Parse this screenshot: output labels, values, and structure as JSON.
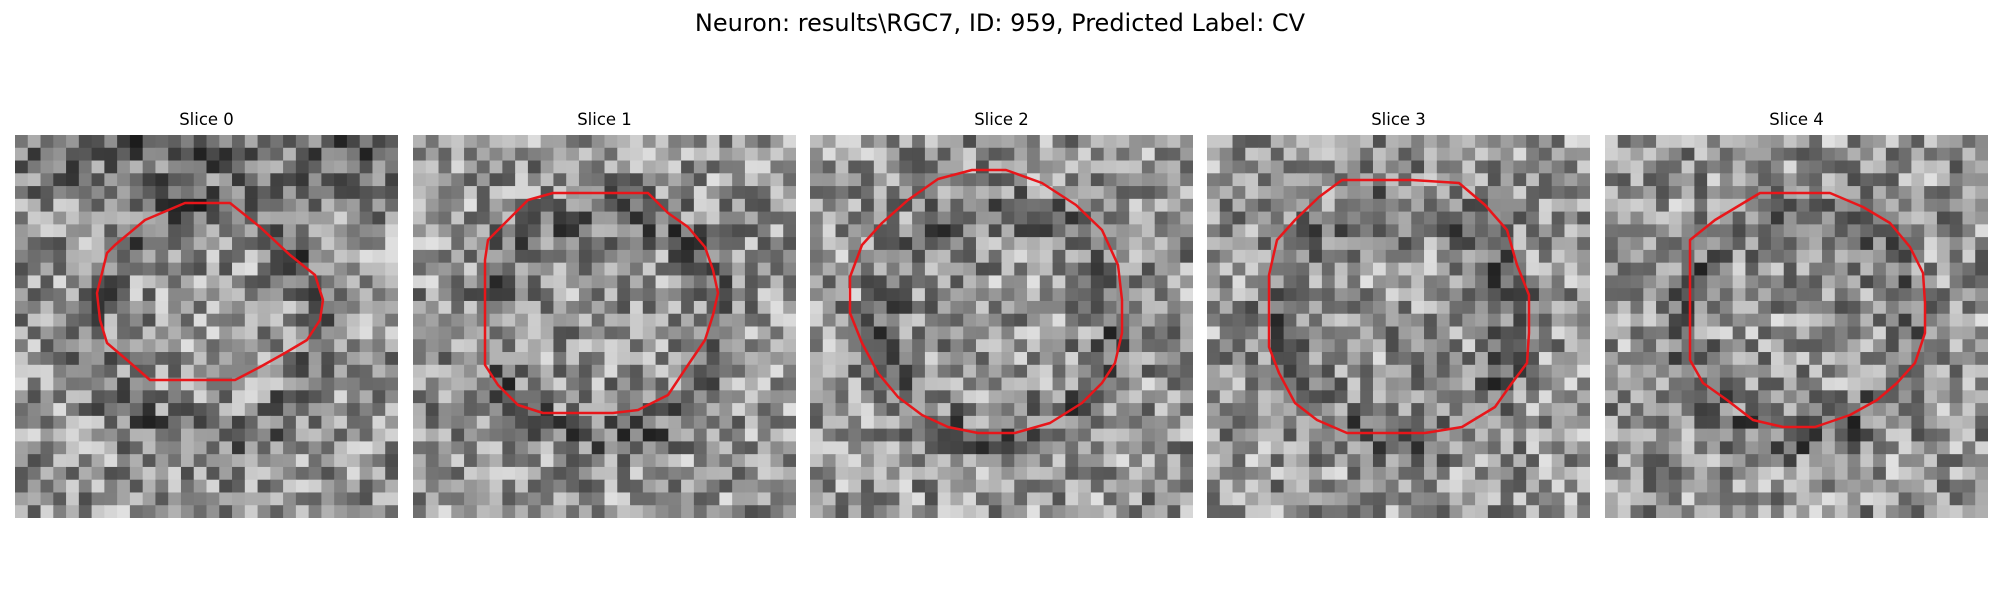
{
  "figure": {
    "title": "Neuron: results\\RGC7, ID: 959, Predicted Label: CV"
  },
  "colors": {
    "background": "#ffffff",
    "contour": "#e8161a"
  },
  "panels": [
    {
      "title": "Slice 0"
    },
    {
      "title": "Slice 1"
    },
    {
      "title": "Slice 2"
    },
    {
      "title": "Slice 3"
    },
    {
      "title": "Slice 4"
    }
  ]
}
